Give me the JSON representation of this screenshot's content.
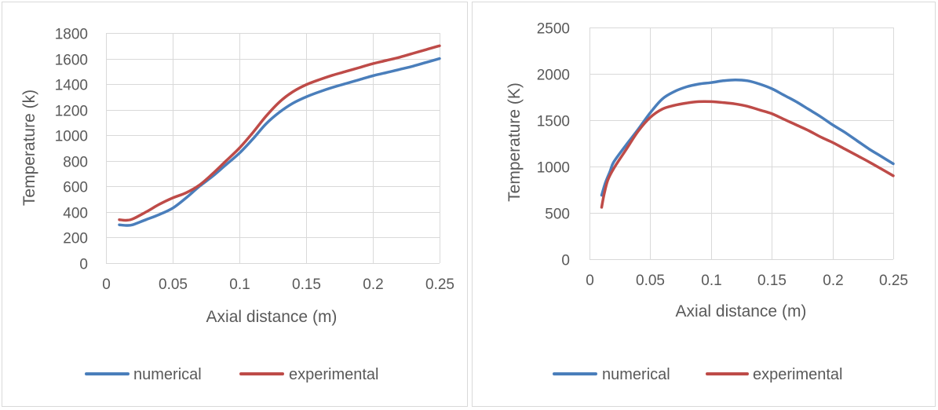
{
  "chart_data": [
    {
      "type": "line",
      "title": "",
      "xlabel": "Axial distance (m)",
      "ylabel": "Temperature (k)",
      "xlim": [
        0,
        0.25
      ],
      "ylim": [
        0,
        1800
      ],
      "xticks": [
        0,
        0.05,
        0.1,
        0.15,
        0.2,
        0.25
      ],
      "xtick_labels": [
        "0",
        "0.05",
        "0.1",
        "0.15",
        "0.2",
        "0.25"
      ],
      "yticks": [
        0,
        200,
        400,
        600,
        800,
        1000,
        1200,
        1400,
        1600,
        1800
      ],
      "ytick_labels": [
        "0",
        "200",
        "400",
        "600",
        "800",
        "1000",
        "1200",
        "1400",
        "1600",
        "1800"
      ],
      "grid": true,
      "legend": "bottom",
      "series": [
        {
          "name": "numerical",
          "color": "#4a7ebb",
          "x": [
            0.01,
            0.015,
            0.02,
            0.03,
            0.04,
            0.05,
            0.06,
            0.07,
            0.08,
            0.09,
            0.1,
            0.11,
            0.12,
            0.13,
            0.14,
            0.15,
            0.16,
            0.17,
            0.18,
            0.19,
            0.2,
            0.21,
            0.22,
            0.23,
            0.24,
            0.25
          ],
          "y": [
            300,
            295,
            300,
            340,
            380,
            430,
            510,
            600,
            680,
            770,
            860,
            970,
            1090,
            1180,
            1250,
            1300,
            1340,
            1375,
            1405,
            1435,
            1465,
            1490,
            1515,
            1540,
            1570,
            1600
          ]
        },
        {
          "name": "experimental",
          "color": "#be4b48",
          "x": [
            0.01,
            0.015,
            0.02,
            0.03,
            0.04,
            0.05,
            0.06,
            0.07,
            0.08,
            0.09,
            0.1,
            0.11,
            0.12,
            0.13,
            0.14,
            0.15,
            0.16,
            0.17,
            0.18,
            0.19,
            0.2,
            0.21,
            0.22,
            0.23,
            0.24,
            0.25
          ],
          "y": [
            340,
            335,
            345,
            400,
            460,
            510,
            550,
            610,
            700,
            800,
            900,
            1020,
            1150,
            1260,
            1340,
            1395,
            1435,
            1470,
            1500,
            1530,
            1560,
            1585,
            1610,
            1640,
            1670,
            1700
          ]
        }
      ]
    },
    {
      "type": "line",
      "title": "",
      "xlabel": "Axial distance (m)",
      "ylabel": "Temperature (K)",
      "xlim": [
        0,
        0.25
      ],
      "ylim": [
        0,
        2500
      ],
      "xticks": [
        0,
        0.05,
        0.1,
        0.15,
        0.2,
        0.25
      ],
      "xtick_labels": [
        "0",
        "0.05",
        "0.1",
        "0.15",
        "0.2",
        "0.25"
      ],
      "yticks": [
        0,
        500,
        1000,
        1500,
        2000,
        2500
      ],
      "ytick_labels": [
        "0",
        "500",
        "1000",
        "1500",
        "2000",
        "2500"
      ],
      "grid": true,
      "legend": "bottom",
      "series": [
        {
          "name": "numerical",
          "color": "#4a7ebb",
          "x": [
            0.01,
            0.013,
            0.017,
            0.02,
            0.03,
            0.04,
            0.05,
            0.06,
            0.07,
            0.08,
            0.09,
            0.1,
            0.11,
            0.12,
            0.13,
            0.14,
            0.15,
            0.16,
            0.17,
            0.18,
            0.19,
            0.2,
            0.21,
            0.22,
            0.23,
            0.24,
            0.25
          ],
          "y": [
            690,
            820,
            950,
            1050,
            1230,
            1400,
            1580,
            1730,
            1810,
            1860,
            1890,
            1905,
            1925,
            1935,
            1925,
            1890,
            1840,
            1770,
            1700,
            1620,
            1540,
            1450,
            1370,
            1280,
            1190,
            1110,
            1030
          ]
        },
        {
          "name": "experimental",
          "color": "#be4b48",
          "x": [
            0.01,
            0.012,
            0.015,
            0.02,
            0.03,
            0.04,
            0.05,
            0.06,
            0.07,
            0.08,
            0.09,
            0.1,
            0.11,
            0.12,
            0.13,
            0.14,
            0.15,
            0.16,
            0.17,
            0.18,
            0.19,
            0.2,
            0.21,
            0.22,
            0.23,
            0.24,
            0.25
          ],
          "y": [
            560,
            700,
            850,
            980,
            1180,
            1380,
            1530,
            1620,
            1660,
            1685,
            1700,
            1700,
            1690,
            1675,
            1650,
            1610,
            1570,
            1510,
            1450,
            1390,
            1320,
            1260,
            1190,
            1120,
            1050,
            975,
            900
          ]
        }
      ]
    }
  ]
}
